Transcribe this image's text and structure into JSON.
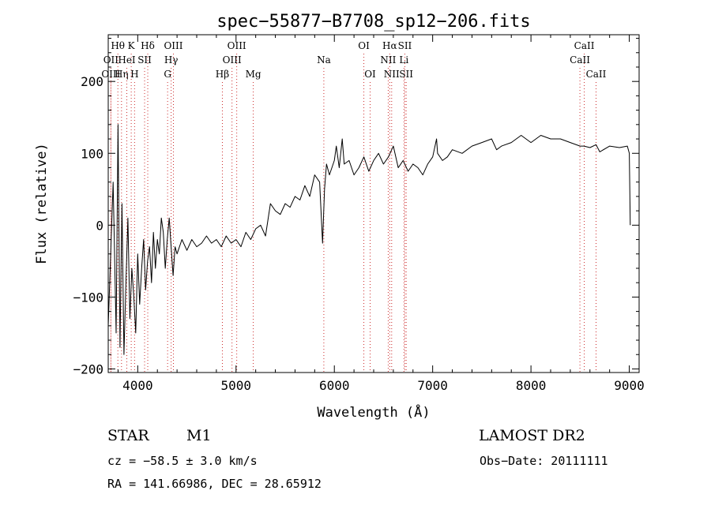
{
  "chart_data": {
    "type": "line",
    "title": "spec−55877−B7708_sp12−206.fits",
    "xlabel": "Wavelength (Å)",
    "ylabel": "Flux (relative)",
    "xlim": [
      3700,
      9100
    ],
    "ylim": [
      -205,
      265
    ],
    "xticks": [
      4000,
      5000,
      6000,
      7000,
      8000,
      9000
    ],
    "yticks": [
      -200,
      -100,
      0,
      100,
      200
    ],
    "grid": false,
    "series": [
      {
        "x": [
          3700,
          3750,
          3780,
          3800,
          3820,
          3840,
          3860,
          3880,
          3900,
          3920,
          3940,
          3960,
          3980,
          4000,
          4020,
          4040,
          4060,
          4080,
          4100,
          4120,
          4140,
          4160,
          4180,
          4200,
          4220,
          4240,
          4260,
          4280,
          4300,
          4320,
          4340,
          4360,
          4380,
          4400,
          4450,
          4500,
          4550,
          4600,
          4650,
          4700,
          4750,
          4800,
          4850,
          4900,
          4950,
          5000,
          5050,
          5100,
          5150,
          5200,
          5250,
          5300,
          5350,
          5400,
          5450,
          5500,
          5550,
          5600,
          5650,
          5700,
          5750,
          5800,
          5850,
          5880,
          5900,
          5920,
          5950,
          6000,
          6020,
          6050,
          6080,
          6100,
          6150,
          6200,
          6250,
          6300,
          6350,
          6400,
          6450,
          6500,
          6550,
          6600,
          6650,
          6700,
          6750,
          6800,
          6850,
          6900,
          6950,
          7000,
          7040,
          7050,
          7100,
          7150,
          7200,
          7300,
          7400,
          7500,
          7600,
          7650,
          7700,
          7800,
          7900,
          8000,
          8100,
          8200,
          8300,
          8400,
          8500,
          8540,
          8600,
          8662,
          8700,
          8800,
          8900,
          8980,
          9000,
          9010
        ],
        "y": [
          -140,
          60,
          -150,
          140,
          -170,
          30,
          -180,
          -80,
          10,
          -130,
          -60,
          -100,
          -150,
          -40,
          -110,
          -60,
          -20,
          -90,
          -50,
          -30,
          -80,
          -10,
          -60,
          -20,
          -40,
          10,
          -10,
          -60,
          -20,
          10,
          -30,
          -70,
          -30,
          -40,
          -20,
          -35,
          -20,
          -30,
          -25,
          -15,
          -25,
          -20,
          -30,
          -15,
          -25,
          -20,
          -30,
          -10,
          -20,
          -5,
          0,
          -15,
          30,
          20,
          15,
          30,
          25,
          40,
          35,
          55,
          40,
          70,
          60,
          -25,
          50,
          85,
          70,
          90,
          110,
          80,
          120,
          85,
          90,
          70,
          80,
          95,
          75,
          90,
          100,
          85,
          95,
          110,
          80,
          90,
          75,
          85,
          80,
          70,
          85,
          95,
          120,
          100,
          90,
          95,
          105,
          100,
          110,
          115,
          120,
          105,
          110,
          115,
          125,
          115,
          125,
          120,
          120,
          115,
          110,
          110,
          108,
          112,
          102,
          110,
          108,
          110,
          100,
          0
        ],
        "color": "#000000"
      }
    ],
    "line_markers": [
      {
        "label": "Hθ",
        "x": 3798,
        "tier": 1
      },
      {
        "label": "K",
        "x": 3934,
        "tier": 1
      },
      {
        "label": "Hδ",
        "x": 4102,
        "tier": 1
      },
      {
        "label": "OIII",
        "x": 4363,
        "tier": 1
      },
      {
        "label": "OIII",
        "x": 5007,
        "tier": 1
      },
      {
        "label": "OI",
        "x": 6300,
        "tier": 1
      },
      {
        "label": "Hα",
        "x": 6563,
        "tier": 1
      },
      {
        "label": "SII",
        "x": 6717,
        "tier": 1
      },
      {
        "label": "CaII",
        "x": 8542,
        "tier": 1
      },
      {
        "label": "OII",
        "x": 3727,
        "tier": 2
      },
      {
        "label": "HeI",
        "x": 3889,
        "tier": 2
      },
      {
        "label": "SII",
        "x": 4070,
        "tier": 2
      },
      {
        "label": "Hγ",
        "x": 4340,
        "tier": 2
      },
      {
        "label": "OIII",
        "x": 4959,
        "tier": 2
      },
      {
        "label": "Na",
        "x": 5893,
        "tier": 2
      },
      {
        "label": "NII",
        "x": 6548,
        "tier": 2
      },
      {
        "label": "Li",
        "x": 6708,
        "tier": 2
      },
      {
        "label": "CaII",
        "x": 8498,
        "tier": 2
      },
      {
        "label": "OIII",
        "x": 3727,
        "tier": 3
      },
      {
        "label": "Hη",
        "x": 3835,
        "tier": 3
      },
      {
        "label": "H",
        "x": 3968,
        "tier": 3
      },
      {
        "label": "G",
        "x": 4304,
        "tier": 3
      },
      {
        "label": "Hβ",
        "x": 4861,
        "tier": 3
      },
      {
        "label": "Mg",
        "x": 5175,
        "tier": 3
      },
      {
        "label": "OI",
        "x": 6364,
        "tier": 3
      },
      {
        "label": "NII",
        "x": 6583,
        "tier": 3
      },
      {
        "label": "SII",
        "x": 6731,
        "tier": 3
      },
      {
        "label": "CaII",
        "x": 8662,
        "tier": 3
      }
    ]
  },
  "info": {
    "object_class": "STAR",
    "subclass": "M1",
    "survey": "LAMOST DR2",
    "redshift_text": "cz = −58.5 ± 3.0 km/s",
    "obs_date_text": "Obs−Date: 20111111",
    "coords_text": "RA = 141.66986, DEC =  28.65912"
  }
}
